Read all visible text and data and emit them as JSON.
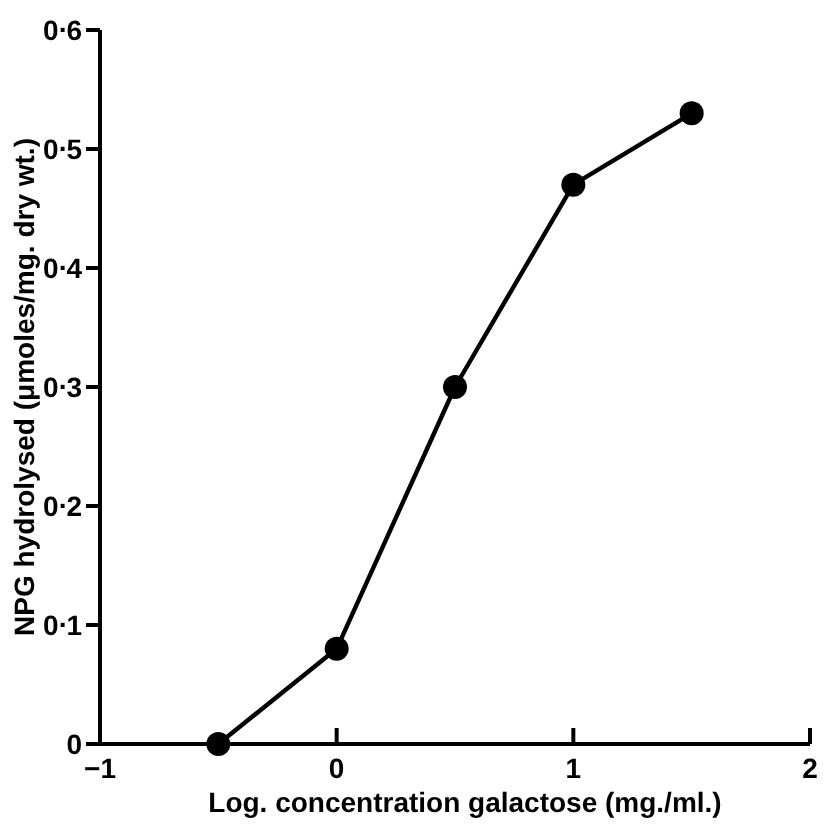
{
  "chart_data": {
    "type": "line",
    "xlabel": "Log. concentration galactose (mg./ml.)",
    "ylabel": "NPG hydrolysed (μmoles/mg. dry wt.)",
    "x": [
      -0.5,
      0,
      0.5,
      1,
      1.5
    ],
    "series": [
      {
        "color": "#000000",
        "values": [
          0,
          0.08,
          0.3,
          0.47,
          0.53
        ]
      }
    ],
    "xlim": [
      -1,
      2
    ],
    "xticks": [
      {
        "value": -1,
        "label": "−1"
      },
      0,
      1,
      2
    ],
    "ylim": [
      0,
      0.6
    ],
    "yticks": [
      0,
      0.1,
      0.2,
      0.3,
      0.4,
      0.5,
      0.6
    ],
    "marker": "circle",
    "line_style": "solid"
  }
}
